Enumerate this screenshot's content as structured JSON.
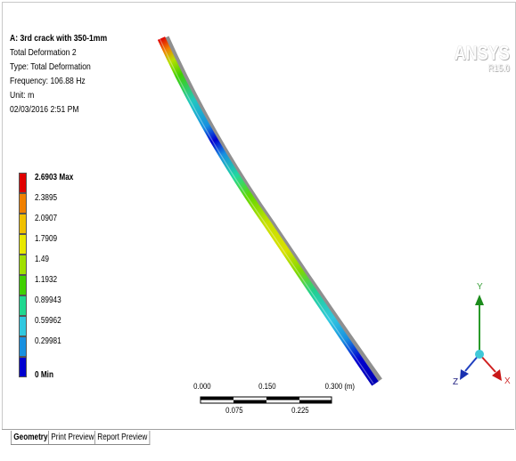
{
  "info": {
    "title": "A: 3rd crack with 350-1mm",
    "result_name": "Total Deformation 2",
    "type": "Type: Total Deformation",
    "frequency": "Frequency: 106.88 Hz",
    "unit": "Unit: m",
    "timestamp": "02/03/2016 2:51 PM"
  },
  "legend": {
    "max_label": "2.6903 Max",
    "min_label": "0 Min",
    "values": [
      "2.3895",
      "2.0907",
      "1.7909",
      "1.49",
      "1.1932",
      "0.89943",
      "0.59962",
      "0.29981"
    ],
    "colors": [
      "#e00000",
      "#f08000",
      "#f0c000",
      "#e8e800",
      "#a0e000",
      "#40d000",
      "#20d890",
      "#30c8e0",
      "#1890e0",
      "#0000d0"
    ]
  },
  "logo": {
    "brand": "ANSYS",
    "version": "R15.0"
  },
  "scale": {
    "top_labels": [
      "0.000",
      "0.150",
      "0.300 (m)"
    ],
    "bottom_labels": [
      "0.075",
      "0.225"
    ]
  },
  "triad": {
    "x": "X",
    "y": "Y",
    "z": "Z"
  },
  "tabs": [
    {
      "label": "Geometry"
    },
    {
      "label": "Print Preview"
    },
    {
      "label": "Report Preview"
    }
  ]
}
